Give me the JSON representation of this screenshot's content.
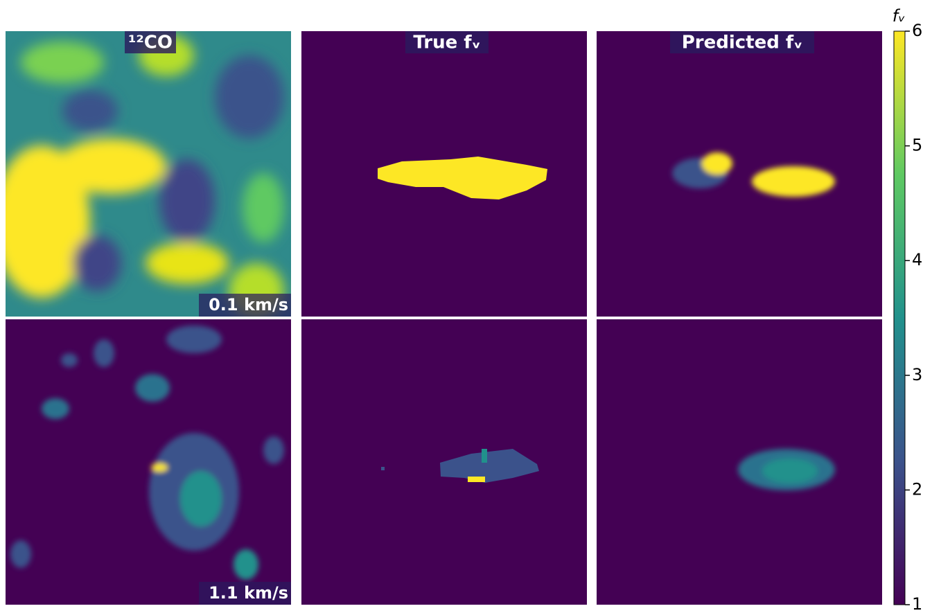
{
  "chart_data": {
    "type": "image-grid",
    "column_titles": [
      "¹²CO",
      "True fᵥ",
      "Predicted fᵥ"
    ],
    "row_annotations": [
      "0.1 km/s",
      "1.1 km/s"
    ],
    "colorbar": {
      "label": "fᵥ",
      "ylim": [
        1,
        6
      ],
      "yticks": [
        1,
        2,
        3,
        4,
        5,
        6
      ],
      "colormap": [
        "#440154",
        "#3b528b",
        "#21918c",
        "#5ec962",
        "#fde725"
      ]
    }
  }
}
